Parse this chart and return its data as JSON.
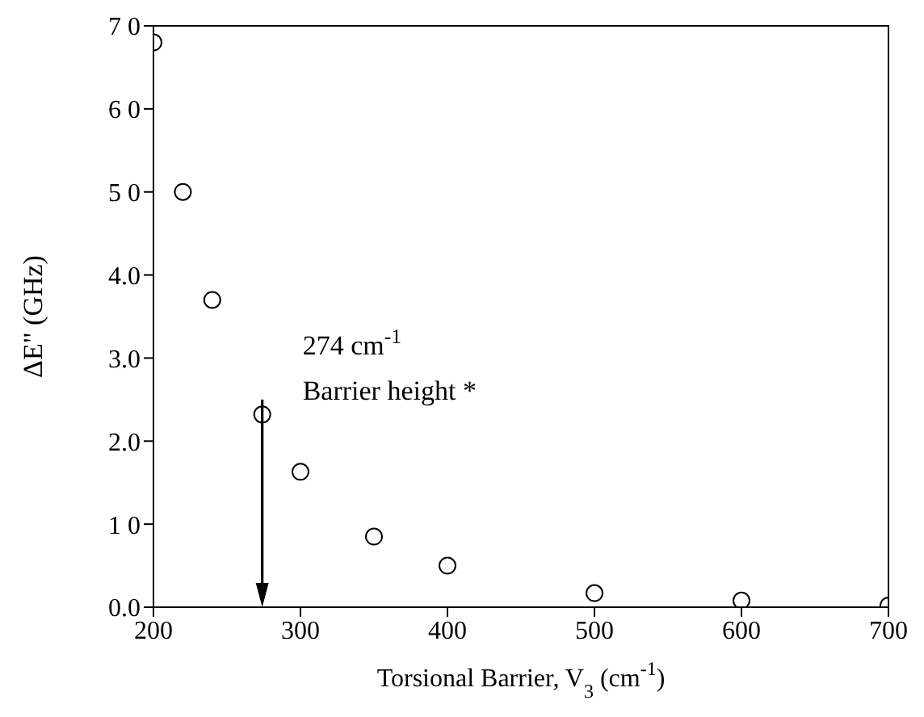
{
  "chart_data": {
    "type": "scatter",
    "xlabel": "Torsional Barrier, V$_{3}$ (cm$^{-1}$)",
    "ylabel": "ΔE\" (GHz)",
    "x": [
      200,
      220,
      240,
      274,
      300,
      350,
      400,
      500,
      600,
      700
    ],
    "series": [
      {
        "color": "#000000",
        "values": [
          6.8,
          5.0,
          3.7,
          2.32,
          1.63,
          0.85,
          0.5,
          0.17,
          0.08,
          0.02
        ]
      }
    ],
    "marker": "circle",
    "xlim": [
      200,
      700
    ],
    "xticks": [
      200,
      300,
      400,
      500,
      600,
      700
    ],
    "ylim": [
      0,
      7
    ],
    "yticks": [
      {
        "value": 0,
        "label": "0.0"
      },
      {
        "value": 1,
        "label": "1 0"
      },
      {
        "value": 2,
        "label": "2.0"
      },
      {
        "value": 3,
        "label": "3.0"
      },
      {
        "value": 4,
        "label": "4.0"
      },
      {
        "value": 5,
        "label": "5 0"
      },
      {
        "value": 6,
        "label": "6 0"
      },
      {
        "value": 7,
        "label": "7 0"
      }
    ],
    "annotations": [
      {
        "text": "274 cm$^{-1}$",
        "x": 274,
        "y": 2.5
      },
      "Barrier height *"
    ],
    "grid": false,
    "legend": false
  }
}
